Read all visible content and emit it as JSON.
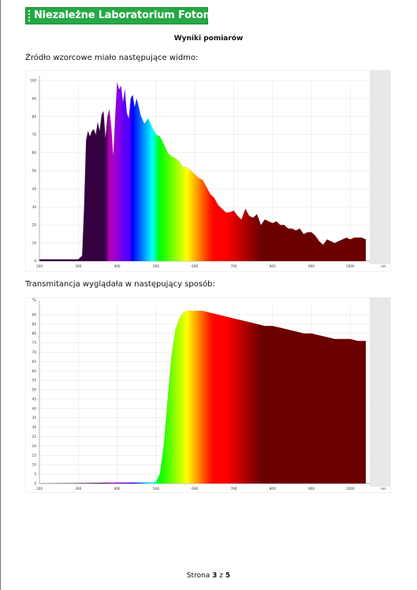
{
  "header": {
    "title": "Niezależne Laboratorium Fotometryczne"
  },
  "section_title": "Wyniki pomiarów",
  "caption_source": "Źródło wzorcowe miało następujące widmo:",
  "caption_transmission": "Transmitancja wyglądała w następujący sposób:",
  "footer": {
    "prefix": "Strona ",
    "page": "3",
    "middle": " z ",
    "total": "5"
  },
  "chart_data": [
    {
      "type": "area",
      "title": "",
      "xlabel": "nm",
      "ylabel": "",
      "xlim": [
        200,
        1050
      ],
      "ylim": [
        0,
        100
      ],
      "x_ticks": [
        "200",
        "300",
        "400",
        "500",
        "600",
        "700",
        "800",
        "900",
        "1000"
      ],
      "y_ticks": [
        "0",
        "10",
        "20",
        "30",
        "40",
        "50",
        "60",
        "70",
        "80",
        "90",
        "100"
      ],
      "x_unit": "nm",
      "grid": true,
      "fill": "spectral (violet to dark red by wavelength)",
      "x": [
        200,
        300,
        310,
        315,
        320,
        325,
        330,
        335,
        340,
        345,
        350,
        355,
        360,
        365,
        370,
        375,
        380,
        385,
        390,
        395,
        400,
        405,
        410,
        415,
        420,
        425,
        430,
        435,
        440,
        445,
        450,
        455,
        460,
        470,
        480,
        490,
        500,
        510,
        520,
        530,
        540,
        550,
        560,
        570,
        580,
        590,
        600,
        610,
        620,
        630,
        640,
        650,
        660,
        670,
        680,
        690,
        700,
        710,
        720,
        730,
        740,
        750,
        760,
        770,
        780,
        790,
        800,
        810,
        820,
        830,
        840,
        850,
        860,
        870,
        880,
        890,
        900,
        910,
        920,
        930,
        940,
        950,
        960,
        970,
        980,
        990,
        1000,
        1010,
        1020,
        1030,
        1040
      ],
      "values": [
        1,
        1,
        3,
        30,
        67,
        72,
        69,
        72,
        73,
        70,
        77,
        72,
        81,
        83,
        68,
        80,
        84,
        74,
        58,
        80,
        99,
        95,
        97,
        88,
        95,
        82,
        79,
        90,
        92,
        85,
        90,
        86,
        81,
        76,
        79,
        74,
        70,
        69,
        65,
        60,
        58,
        57,
        55,
        52,
        52,
        50,
        48,
        46,
        45,
        41,
        37,
        35,
        31,
        29,
        27,
        27,
        28,
        25,
        23,
        29,
        25,
        24,
        26,
        20,
        23,
        22,
        21,
        22,
        20,
        20,
        18,
        18,
        17,
        18,
        15,
        16,
        16,
        14,
        11,
        9,
        12,
        11,
        10,
        11,
        12,
        13,
        12,
        13,
        13,
        13,
        12
      ]
    },
    {
      "type": "area",
      "title": "",
      "xlabel": "nm",
      "ylabel": "%",
      "xlim": [
        200,
        1050
      ],
      "ylim": [
        0,
        95
      ],
      "x_ticks": [
        "200",
        "300",
        "400",
        "500",
        "600",
        "700",
        "800",
        "900",
        "1000"
      ],
      "y_ticks": [
        "0",
        "5",
        "10",
        "15",
        "20",
        "25",
        "30",
        "35",
        "40",
        "45",
        "50",
        "55",
        "60",
        "65",
        "70",
        "75",
        "80",
        "85",
        "90"
      ],
      "y_unit": "%",
      "grid": true,
      "fill": "spectral (yellow-green to dark red by wavelength)",
      "x": [
        200,
        300,
        400,
        490,
        500,
        510,
        520,
        530,
        540,
        550,
        560,
        570,
        580,
        590,
        600,
        620,
        640,
        660,
        680,
        700,
        720,
        740,
        760,
        780,
        800,
        820,
        840,
        860,
        880,
        900,
        920,
        940,
        960,
        980,
        1000,
        1020,
        1040
      ],
      "values": [
        0,
        0.2,
        0.5,
        0.5,
        1,
        5,
        20,
        45,
        68,
        82,
        88,
        91,
        92,
        92,
        92,
        92,
        91,
        90,
        89,
        88,
        87,
        86,
        85,
        84,
        84,
        83,
        82,
        81,
        80,
        80,
        79,
        78,
        77,
        77,
        77,
        76,
        76
      ]
    }
  ]
}
